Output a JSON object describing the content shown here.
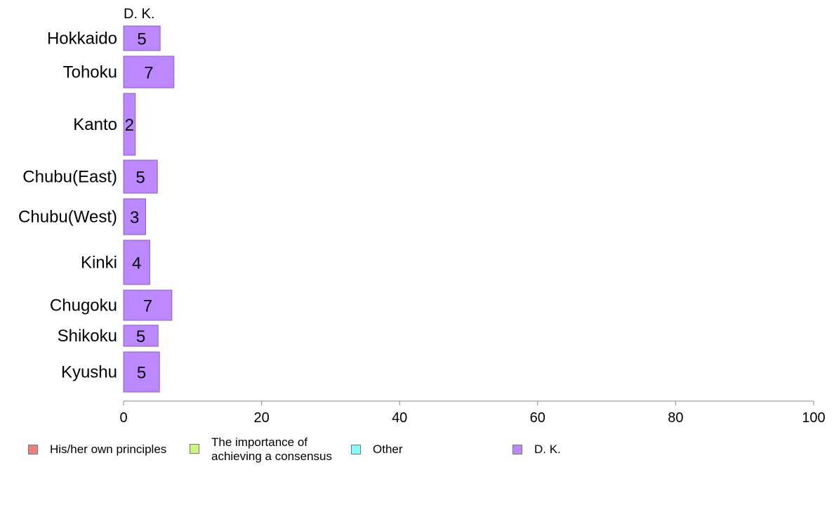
{
  "chart_data": {
    "type": "bar",
    "orientation": "horizontal",
    "stacked": true,
    "series_header": "D. K.",
    "categories": [
      "Hokkaido",
      "Tohoku",
      "Kanto",
      "Chubu(East)",
      "Chubu(West)",
      "Kinki",
      "Chugoku",
      "Shikoku",
      "Kyushu"
    ],
    "series": [
      {
        "name": "His/her own principles",
        "color": "#f08080",
        "values": [
          0,
          0,
          0,
          0,
          0,
          0,
          0,
          0,
          0
        ]
      },
      {
        "name": "The importance of achieving a consensus",
        "color": "#c8f878",
        "values": [
          0,
          0,
          0,
          0,
          0,
          0,
          0,
          0,
          0
        ]
      },
      {
        "name": "Other",
        "color": "#80ffff",
        "values": [
          0,
          0,
          0,
          0,
          0,
          0,
          0,
          0,
          0
        ]
      },
      {
        "name": "D. K.",
        "color": "#bb88ff",
        "values": [
          5.3,
          7.3,
          1.7,
          4.9,
          3.2,
          3.8,
          7.0,
          5.0,
          5.2
        ],
        "labels": [
          "5",
          "7",
          "2",
          "5",
          "3",
          "4",
          "7",
          "5",
          "5"
        ]
      }
    ],
    "xlim": [
      0,
      100
    ],
    "xticks": [
      "0",
      "20",
      "40",
      "60",
      "80",
      "100"
    ],
    "legend_position": "bottom",
    "grid": false
  },
  "legend": [
    {
      "lines": [
        "His/her own principles"
      ],
      "color": "#f08080"
    },
    {
      "lines": [
        "The importance of",
        "achieving a consensus"
      ],
      "color": "#c8f878"
    },
    {
      "lines": [
        "Other"
      ],
      "color": "#80ffff"
    },
    {
      "lines": [
        "D. K."
      ],
      "color": "#bb88ff"
    }
  ]
}
